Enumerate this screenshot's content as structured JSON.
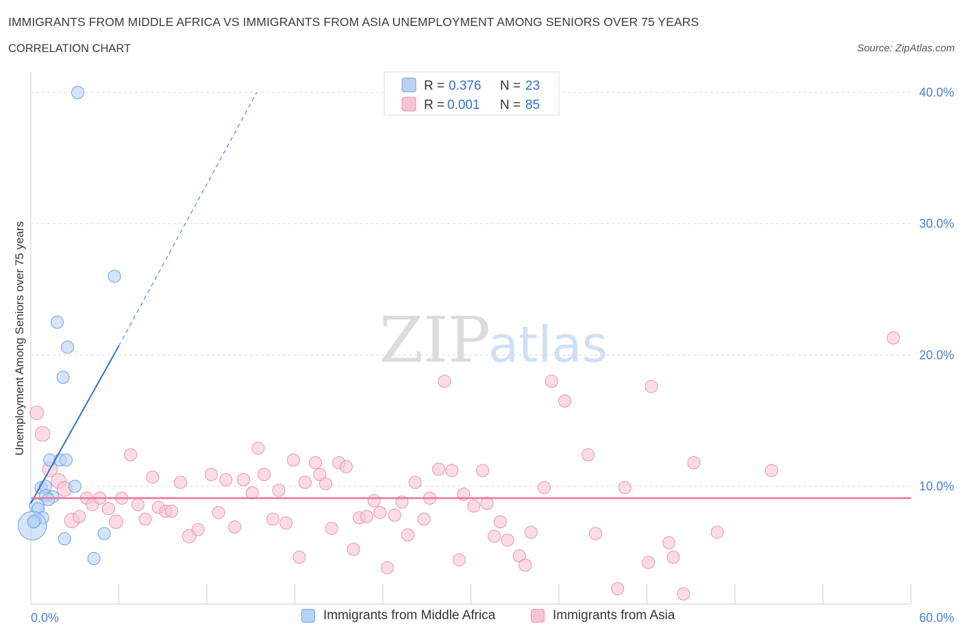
{
  "header": {
    "title": "IMMIGRANTS FROM MIDDLE AFRICA VS IMMIGRANTS FROM ASIA UNEMPLOYMENT AMONG SENIORS OVER 75 YEARS",
    "subtitle": "CORRELATION CHART",
    "source": "Source: ZipAtlas.com"
  },
  "watermark": {
    "zip": "ZIP",
    "atlas": "atlas"
  },
  "colors": {
    "blue_fill": "#b8d2f5",
    "blue_stroke": "#6f9fe0",
    "blue_line": "#2f6fd0",
    "pink_fill": "#f8c4d4",
    "pink_stroke": "#e892ad",
    "pink_line": "#e8739a",
    "axis_label": "#4a7fd4",
    "grid": "#d9d9d9"
  },
  "legend": {
    "rows": [
      {
        "r_label": "R =",
        "r_value": "0.376",
        "n_label": "N =",
        "n_value": "23",
        "series": "blue"
      },
      {
        "r_label": "R =",
        "r_value": "0.001",
        "n_label": "N =",
        "n_value": "85",
        "series": "pink"
      }
    ]
  },
  "bottom_legend": [
    {
      "label": "Immigrants from Middle Africa",
      "series": "blue"
    },
    {
      "label": "Immigrants from Asia",
      "series": "pink"
    }
  ],
  "chart_data": {
    "type": "scatter",
    "title": "IMMIGRANTS FROM MIDDLE AFRICA VS IMMIGRANTS FROM ASIA UNEMPLOYMENT AMONG SENIORS OVER 75 YEARS",
    "xlabel": "",
    "ylabel": "Unemployment Among Seniors over 75 years",
    "xlim": [
      0,
      60
    ],
    "ylim": [
      0,
      40
    ],
    "x_tick_labels": [
      {
        "value": 0,
        "label": "0.0%"
      },
      {
        "value": 60,
        "label": "60.0%"
      }
    ],
    "y_tick_labels": [
      {
        "value": 10,
        "label": "10.0%"
      },
      {
        "value": 20,
        "label": "20.0%"
      },
      {
        "value": 30,
        "label": "30.0%"
      },
      {
        "value": 40,
        "label": "40.0%"
      }
    ],
    "grid": true,
    "series": [
      {
        "name": "Immigrants from Middle Africa",
        "color": "blue",
        "R": 0.376,
        "N": 23,
        "trend": {
          "x0": 0,
          "y0": 8.7,
          "x1": 6.0,
          "y1": 20.7,
          "dash_to_x": 15.4,
          "dash_to_y": 40.0
        },
        "points": [
          {
            "x": 3.2,
            "y": 40.0,
            "s": 1
          },
          {
            "x": 5.7,
            "y": 26.0,
            "s": 1
          },
          {
            "x": 1.8,
            "y": 22.5,
            "s": 1
          },
          {
            "x": 2.5,
            "y": 20.6,
            "s": 1
          },
          {
            "x": 2.2,
            "y": 18.3,
            "s": 1
          },
          {
            "x": 1.3,
            "y": 12.0,
            "s": 1
          },
          {
            "x": 2.0,
            "y": 12.0,
            "s": 1
          },
          {
            "x": 2.4,
            "y": 12.0,
            "s": 1
          },
          {
            "x": 0.7,
            "y": 9.9,
            "s": 1
          },
          {
            "x": 1.0,
            "y": 10.0,
            "s": 1
          },
          {
            "x": 3.0,
            "y": 10.0,
            "s": 1
          },
          {
            "x": 1.0,
            "y": 9.3,
            "s": 1
          },
          {
            "x": 1.5,
            "y": 9.2,
            "s": 1
          },
          {
            "x": 1.2,
            "y": 9.0,
            "s": 1
          },
          {
            "x": 0.4,
            "y": 8.5,
            "s": 1.2
          },
          {
            "x": 0.5,
            "y": 8.3,
            "s": 1
          },
          {
            "x": 0.8,
            "y": 7.6,
            "s": 1
          },
          {
            "x": 0.3,
            "y": 7.4,
            "s": 1
          },
          {
            "x": 0.1,
            "y": 7.0,
            "s": 2.3
          },
          {
            "x": 0.2,
            "y": 7.3,
            "s": 1
          },
          {
            "x": 5.0,
            "y": 6.4,
            "s": 1
          },
          {
            "x": 2.3,
            "y": 6.0,
            "s": 1
          },
          {
            "x": 4.3,
            "y": 4.5,
            "s": 1
          }
        ]
      },
      {
        "name": "Immigrants from Asia",
        "color": "pink",
        "R": 0.001,
        "N": 85,
        "trend": {
          "x0": 0,
          "y0": 9.1,
          "x1": 60,
          "y1": 9.1
        },
        "points": [
          {
            "x": 0.4,
            "y": 15.6,
            "s": 1.1
          },
          {
            "x": 0.8,
            "y": 14.0,
            "s": 1.2
          },
          {
            "x": 1.3,
            "y": 11.3,
            "s": 1.2
          },
          {
            "x": 1.9,
            "y": 10.4,
            "s": 1.2
          },
          {
            "x": 2.3,
            "y": 9.8,
            "s": 1.2
          },
          {
            "x": 2.8,
            "y": 7.4,
            "s": 1.2
          },
          {
            "x": 3.3,
            "y": 7.7,
            "s": 1
          },
          {
            "x": 3.8,
            "y": 9.1,
            "s": 1
          },
          {
            "x": 4.2,
            "y": 8.6,
            "s": 1
          },
          {
            "x": 4.7,
            "y": 9.1,
            "s": 1
          },
          {
            "x": 5.3,
            "y": 8.3,
            "s": 1
          },
          {
            "x": 5.8,
            "y": 7.3,
            "s": 1.1
          },
          {
            "x": 6.2,
            "y": 9.1,
            "s": 1
          },
          {
            "x": 6.8,
            "y": 12.4,
            "s": 1
          },
          {
            "x": 7.3,
            "y": 8.6,
            "s": 1
          },
          {
            "x": 7.8,
            "y": 7.5,
            "s": 1
          },
          {
            "x": 8.3,
            "y": 10.7,
            "s": 1
          },
          {
            "x": 8.7,
            "y": 8.4,
            "s": 1
          },
          {
            "x": 9.2,
            "y": 8.1,
            "s": 1
          },
          {
            "x": 9.6,
            "y": 8.1,
            "s": 1
          },
          {
            "x": 10.2,
            "y": 10.3,
            "s": 1
          },
          {
            "x": 10.8,
            "y": 6.2,
            "s": 1.1
          },
          {
            "x": 11.4,
            "y": 6.7,
            "s": 1
          },
          {
            "x": 12.3,
            "y": 10.9,
            "s": 1
          },
          {
            "x": 12.8,
            "y": 8.0,
            "s": 1
          },
          {
            "x": 13.3,
            "y": 10.5,
            "s": 1
          },
          {
            "x": 13.9,
            "y": 6.9,
            "s": 1
          },
          {
            "x": 14.5,
            "y": 10.5,
            "s": 1
          },
          {
            "x": 15.1,
            "y": 9.5,
            "s": 1
          },
          {
            "x": 15.5,
            "y": 12.9,
            "s": 1
          },
          {
            "x": 15.9,
            "y": 10.9,
            "s": 1
          },
          {
            "x": 16.5,
            "y": 7.5,
            "s": 1
          },
          {
            "x": 16.9,
            "y": 9.7,
            "s": 1
          },
          {
            "x": 17.4,
            "y": 7.2,
            "s": 1
          },
          {
            "x": 17.9,
            "y": 12.0,
            "s": 1
          },
          {
            "x": 18.3,
            "y": 4.6,
            "s": 1
          },
          {
            "x": 18.7,
            "y": 10.3,
            "s": 1
          },
          {
            "x": 19.4,
            "y": 11.8,
            "s": 1
          },
          {
            "x": 19.7,
            "y": 10.9,
            "s": 1
          },
          {
            "x": 20.1,
            "y": 10.2,
            "s": 1
          },
          {
            "x": 20.5,
            "y": 6.8,
            "s": 1
          },
          {
            "x": 21.0,
            "y": 11.8,
            "s": 1
          },
          {
            "x": 21.5,
            "y": 11.5,
            "s": 1
          },
          {
            "x": 22.0,
            "y": 5.2,
            "s": 1
          },
          {
            "x": 22.4,
            "y": 7.6,
            "s": 1
          },
          {
            "x": 22.9,
            "y": 7.7,
            "s": 1
          },
          {
            "x": 23.4,
            "y": 8.9,
            "s": 1
          },
          {
            "x": 23.8,
            "y": 8.0,
            "s": 1
          },
          {
            "x": 24.3,
            "y": 3.8,
            "s": 1
          },
          {
            "x": 24.8,
            "y": 7.8,
            "s": 1
          },
          {
            "x": 25.3,
            "y": 8.8,
            "s": 1
          },
          {
            "x": 25.7,
            "y": 6.3,
            "s": 1
          },
          {
            "x": 26.2,
            "y": 10.3,
            "s": 1
          },
          {
            "x": 26.8,
            "y": 7.5,
            "s": 1
          },
          {
            "x": 27.2,
            "y": 9.1,
            "s": 1
          },
          {
            "x": 27.8,
            "y": 11.3,
            "s": 1
          },
          {
            "x": 28.2,
            "y": 18.0,
            "s": 1
          },
          {
            "x": 28.7,
            "y": 11.2,
            "s": 1
          },
          {
            "x": 29.2,
            "y": 4.4,
            "s": 1
          },
          {
            "x": 29.5,
            "y": 9.4,
            "s": 1
          },
          {
            "x": 30.2,
            "y": 8.5,
            "s": 1
          },
          {
            "x": 30.8,
            "y": 11.2,
            "s": 1
          },
          {
            "x": 31.1,
            "y": 8.7,
            "s": 1
          },
          {
            "x": 31.6,
            "y": 6.2,
            "s": 1
          },
          {
            "x": 32.0,
            "y": 7.3,
            "s": 1
          },
          {
            "x": 32.5,
            "y": 5.9,
            "s": 1
          },
          {
            "x": 33.3,
            "y": 4.7,
            "s": 1
          },
          {
            "x": 33.7,
            "y": 4.0,
            "s": 1
          },
          {
            "x": 34.1,
            "y": 6.5,
            "s": 1
          },
          {
            "x": 35.0,
            "y": 9.9,
            "s": 1
          },
          {
            "x": 35.5,
            "y": 18.0,
            "s": 1
          },
          {
            "x": 36.4,
            "y": 16.5,
            "s": 1
          },
          {
            "x": 38.0,
            "y": 12.4,
            "s": 1
          },
          {
            "x": 38.5,
            "y": 6.4,
            "s": 1
          },
          {
            "x": 40.0,
            "y": 2.2,
            "s": 1
          },
          {
            "x": 40.5,
            "y": 9.9,
            "s": 1
          },
          {
            "x": 42.1,
            "y": 4.2,
            "s": 1
          },
          {
            "x": 42.3,
            "y": 17.6,
            "s": 1
          },
          {
            "x": 43.5,
            "y": 5.7,
            "s": 1
          },
          {
            "x": 43.8,
            "y": 4.6,
            "s": 1
          },
          {
            "x": 44.5,
            "y": 1.8,
            "s": 1
          },
          {
            "x": 45.2,
            "y": 11.8,
            "s": 1
          },
          {
            "x": 46.8,
            "y": 6.5,
            "s": 1
          },
          {
            "x": 50.5,
            "y": 11.2,
            "s": 1
          },
          {
            "x": 58.8,
            "y": 21.3,
            "s": 1
          }
        ]
      }
    ]
  }
}
